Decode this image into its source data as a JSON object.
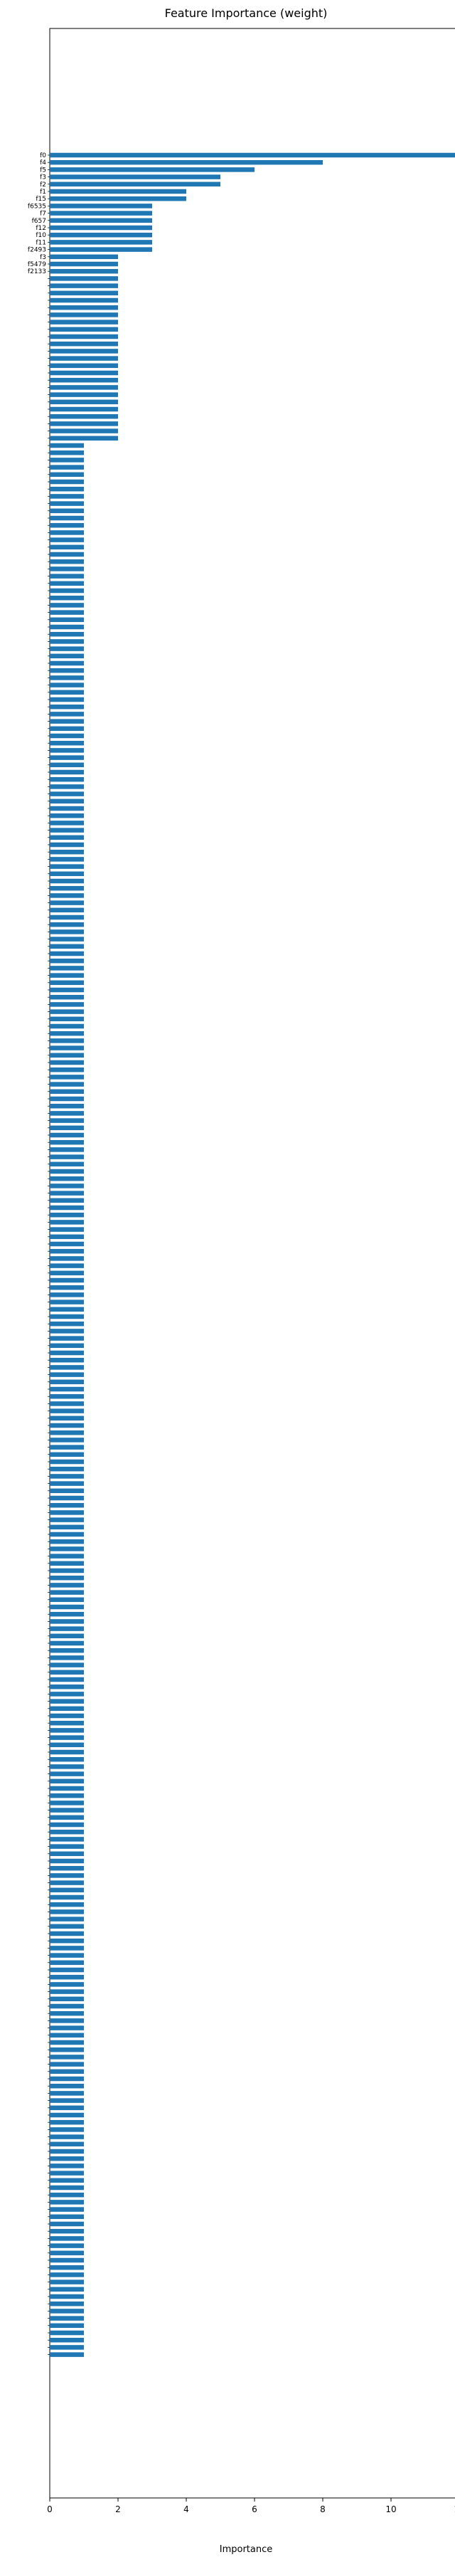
{
  "chart_data": {
    "type": "bar",
    "orientation": "horizontal",
    "title": "Feature Importance (weight)",
    "xlabel": "Importance",
    "ylabel": "",
    "xlim": [
      0,
      12.5
    ],
    "xticks": [
      0,
      2,
      4,
      6,
      8,
      10,
      12
    ],
    "grid": false,
    "bar_color": "#1f77b4",
    "visible_categories": [
      "f0",
      "f4",
      "f5",
      "f3",
      "f2",
      "f1",
      "f15",
      "f6535",
      "f7",
      "f657",
      "f12",
      "f10",
      "f11",
      "f2493",
      "f3",
      "f5479",
      "f2133"
    ],
    "values": [
      12,
      8,
      6,
      5,
      5,
      4,
      4,
      3,
      3,
      3,
      3,
      3,
      3,
      3,
      2,
      2,
      2,
      2,
      2,
      2,
      2,
      2,
      2,
      2,
      2,
      2,
      2,
      2,
      2,
      2,
      2,
      2,
      2,
      2,
      2,
      2,
      2,
      2,
      2,
      2,
      1,
      1,
      1,
      1,
      1,
      1,
      1,
      1,
      1,
      1,
      1,
      1,
      1,
      1,
      1,
      1,
      1,
      1,
      1,
      1,
      1,
      1,
      1,
      1,
      1,
      1,
      1,
      1,
      1,
      1,
      1,
      1,
      1,
      1,
      1,
      1,
      1,
      1,
      1,
      1,
      1,
      1,
      1,
      1,
      1,
      1,
      1,
      1,
      1,
      1,
      1,
      1,
      1,
      1,
      1,
      1,
      1,
      1,
      1,
      1,
      1,
      1,
      1,
      1,
      1,
      1,
      1,
      1,
      1,
      1,
      1,
      1,
      1,
      1,
      1,
      1,
      1,
      1,
      1,
      1,
      1,
      1,
      1,
      1,
      1,
      1,
      1,
      1,
      1,
      1,
      1,
      1,
      1,
      1,
      1,
      1,
      1,
      1,
      1,
      1,
      1,
      1,
      1,
      1,
      1,
      1,
      1,
      1,
      1,
      1,
      1,
      1,
      1,
      1,
      1,
      1,
      1,
      1,
      1,
      1,
      1,
      1,
      1,
      1,
      1,
      1,
      1,
      1,
      1,
      1,
      1,
      1,
      1,
      1,
      1,
      1,
      1,
      1,
      1,
      1,
      1,
      1,
      1,
      1,
      1,
      1,
      1,
      1,
      1,
      1,
      1,
      1,
      1,
      1,
      1,
      1,
      1,
      1,
      1,
      1,
      1,
      1,
      1,
      1,
      1,
      1,
      1,
      1,
      1,
      1,
      1,
      1,
      1,
      1,
      1,
      1,
      1,
      1,
      1,
      1,
      1,
      1,
      1,
      1,
      1,
      1,
      1,
      1,
      1,
      1,
      1,
      1,
      1,
      1,
      1,
      1,
      1,
      1,
      1,
      1,
      1,
      1,
      1,
      1,
      1,
      1,
      1,
      1,
      1,
      1,
      1,
      1,
      1,
      1,
      1,
      1,
      1,
      1,
      1,
      1,
      1,
      1,
      1,
      1,
      1,
      1,
      1,
      1,
      1,
      1,
      1,
      1,
      1,
      1,
      1,
      1,
      1,
      1,
      1,
      1,
      1,
      1,
      1,
      1,
      1,
      1,
      1,
      1,
      1,
      1,
      1,
      1,
      1,
      1,
      1,
      1,
      1,
      1,
      1,
      1,
      1,
      1,
      1,
      1
    ]
  }
}
